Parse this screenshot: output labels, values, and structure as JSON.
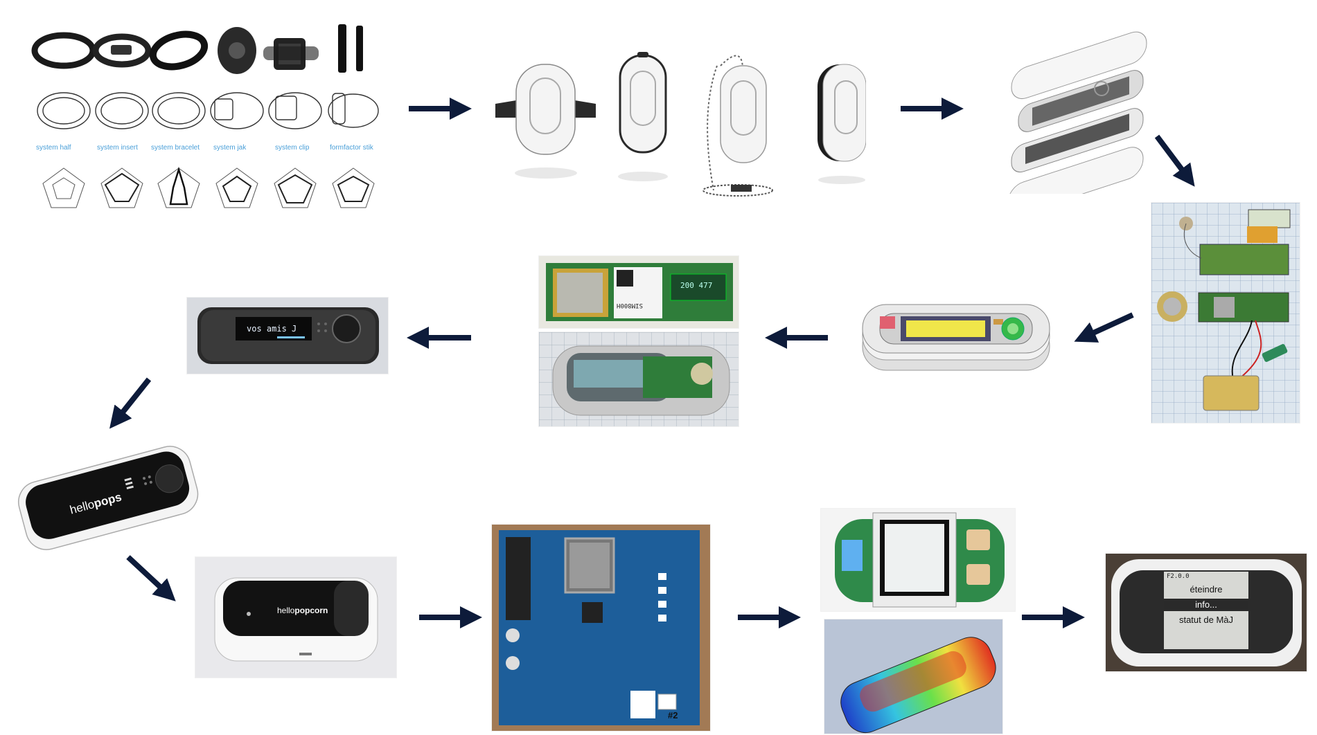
{
  "concept_board": {
    "labels": [
      "system half",
      "system insert",
      "system bracelet",
      "system jak",
      "system clip",
      "formfactor stik"
    ]
  },
  "oled_prototype": {
    "screen_text": "vos amis J"
  },
  "module_board": {
    "chip_label": "SIM800H",
    "display_text": "200 477"
  },
  "hellopops": {
    "brand_light": "hello",
    "brand_bold": "pops"
  },
  "hellopopcorn": {
    "brand_light": "hello",
    "brand_bold": "popcorn"
  },
  "dev_board": {
    "board_number": "#2"
  },
  "final_device": {
    "status_text": "F2.0.0",
    "menu_items": [
      "éteindre",
      "info...",
      "statut de MàJ"
    ],
    "selected_index": 1
  },
  "colors": {
    "arrow": "#0d1b3a",
    "pcb_green": "#2f7d3a",
    "pcb_blue": "#1d5e9a",
    "device_white": "#f2f2f2",
    "device_black": "#1c1c1c"
  }
}
